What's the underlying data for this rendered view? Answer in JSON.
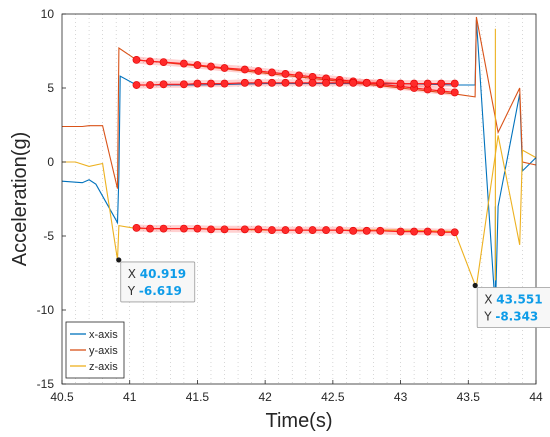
{
  "chart_data": {
    "type": "line",
    "xlabel": "Time(s)",
    "ylabel": "Acceleration(g)",
    "xlim": [
      40.5,
      44
    ],
    "ylim": [
      -15,
      10
    ],
    "x_ticks": [
      "40.5",
      "41",
      "41.5",
      "42",
      "42.5",
      "43",
      "43.5",
      "44"
    ],
    "y_ticks": [
      "-15",
      "-10",
      "-5",
      "0",
      "5",
      "10"
    ],
    "grid": "dotted vertical",
    "legend_position": "bottom-left",
    "series": [
      {
        "name": "x-axis",
        "color": "#0072bd",
        "points": [
          [
            40.5,
            -1.3
          ],
          [
            40.65,
            -1.4
          ],
          [
            40.7,
            -1.2
          ],
          [
            40.75,
            -1.5
          ],
          [
            40.91,
            -4.1
          ],
          [
            40.92,
            -0.9
          ],
          [
            40.93,
            5.8
          ],
          [
            41.05,
            5.2
          ],
          [
            41.5,
            5.2
          ],
          [
            42,
            5.3
          ],
          [
            42.5,
            5.3
          ],
          [
            43,
            5.3
          ],
          [
            43.4,
            5.2
          ],
          [
            43.55,
            5.2
          ],
          [
            43.56,
            9.6
          ],
          [
            43.7,
            -10
          ],
          [
            43.72,
            -3
          ],
          [
            43.88,
            4.6
          ],
          [
            43.9,
            -0.6
          ],
          [
            44,
            0.3
          ]
        ]
      },
      {
        "name": "y-axis",
        "color": "#d95319",
        "points": [
          [
            40.5,
            2.4
          ],
          [
            40.65,
            2.4
          ],
          [
            40.7,
            2.45
          ],
          [
            40.8,
            2.45
          ],
          [
            40.91,
            -1.8
          ],
          [
            40.92,
            7.7
          ],
          [
            41.05,
            6.9
          ],
          [
            41.5,
            6.5
          ],
          [
            42,
            6.0
          ],
          [
            42.5,
            5.5
          ],
          [
            43,
            5.0
          ],
          [
            43.4,
            4.6
          ],
          [
            43.55,
            4.4
          ],
          [
            43.56,
            9.8
          ],
          [
            43.72,
            2.0
          ],
          [
            43.88,
            5.0
          ],
          [
            43.9,
            0
          ],
          [
            44,
            -0.2
          ]
        ]
      },
      {
        "name": "z-axis",
        "color": "#edb120",
        "points": [
          [
            40.5,
            0
          ],
          [
            40.6,
            0
          ],
          [
            40.7,
            -0.3
          ],
          [
            40.8,
            -0.1
          ],
          [
            40.91,
            -6.6
          ],
          [
            40.92,
            -4.3
          ],
          [
            41.05,
            -4.5
          ],
          [
            41.5,
            -4.5
          ],
          [
            42,
            -4.6
          ],
          [
            42.5,
            -4.6
          ],
          [
            43,
            -4.6
          ],
          [
            43.4,
            -4.7
          ],
          [
            43.55,
            -8.3
          ],
          [
            43.56,
            -8.4
          ],
          [
            43.72,
            1.8
          ],
          [
            43.88,
            -5.6
          ],
          [
            43.9,
            0.8
          ],
          [
            44,
            0.3
          ]
        ]
      }
    ],
    "vertical_lines": [
      {
        "x": 43.7,
        "y_from": -10,
        "y_to": -3,
        "color": "#0072bd"
      },
      {
        "x": 43.7,
        "y_from": -8,
        "y_to": 9,
        "color": "#edb120"
      }
    ],
    "brushed_points": [
      {
        "series": "y-axis",
        "points": [
          [
            41.05,
            6.9
          ],
          [
            41.15,
            6.8
          ],
          [
            41.25,
            6.75
          ],
          [
            41.4,
            6.65
          ],
          [
            41.5,
            6.55
          ],
          [
            41.6,
            6.45
          ],
          [
            41.7,
            6.35
          ],
          [
            41.85,
            6.25
          ],
          [
            41.95,
            6.15
          ],
          [
            42.05,
            6.05
          ],
          [
            42.15,
            5.95
          ],
          [
            42.25,
            5.85
          ],
          [
            42.35,
            5.75
          ],
          [
            42.45,
            5.65
          ],
          [
            42.55,
            5.55
          ],
          [
            42.65,
            5.45
          ],
          [
            42.75,
            5.35
          ],
          [
            42.85,
            5.25
          ],
          [
            43,
            5.1
          ],
          [
            43.1,
            5.0
          ],
          [
            43.2,
            4.9
          ],
          [
            43.3,
            4.8
          ],
          [
            43.4,
            4.7
          ]
        ]
      },
      {
        "series": "x-axis",
        "points": [
          [
            41.05,
            5.2
          ],
          [
            41.15,
            5.2
          ],
          [
            41.25,
            5.25
          ],
          [
            41.4,
            5.25
          ],
          [
            41.5,
            5.3
          ],
          [
            41.6,
            5.3
          ],
          [
            41.7,
            5.3
          ],
          [
            41.85,
            5.35
          ],
          [
            41.95,
            5.35
          ],
          [
            42.05,
            5.35
          ],
          [
            42.15,
            5.35
          ],
          [
            42.25,
            5.35
          ],
          [
            42.35,
            5.35
          ],
          [
            42.45,
            5.35
          ],
          [
            42.55,
            5.35
          ],
          [
            42.65,
            5.35
          ],
          [
            42.75,
            5.35
          ],
          [
            42.85,
            5.35
          ],
          [
            43,
            5.3
          ],
          [
            43.1,
            5.3
          ],
          [
            43.2,
            5.3
          ],
          [
            43.3,
            5.3
          ],
          [
            43.4,
            5.3
          ]
        ]
      },
      {
        "series": "z-axis",
        "points": [
          [
            41.05,
            -4.45
          ],
          [
            41.15,
            -4.5
          ],
          [
            41.25,
            -4.5
          ],
          [
            41.4,
            -4.5
          ],
          [
            41.5,
            -4.5
          ],
          [
            41.6,
            -4.55
          ],
          [
            41.7,
            -4.55
          ],
          [
            41.85,
            -4.55
          ],
          [
            41.95,
            -4.55
          ],
          [
            42.05,
            -4.6
          ],
          [
            42.15,
            -4.6
          ],
          [
            42.25,
            -4.6
          ],
          [
            42.35,
            -4.6
          ],
          [
            42.45,
            -4.6
          ],
          [
            42.55,
            -4.6
          ],
          [
            42.65,
            -4.65
          ],
          [
            42.75,
            -4.65
          ],
          [
            42.85,
            -4.65
          ],
          [
            43,
            -4.7
          ],
          [
            43.1,
            -4.7
          ],
          [
            43.2,
            -4.7
          ],
          [
            43.3,
            -4.75
          ],
          [
            43.4,
            -4.75
          ]
        ]
      }
    ],
    "datatips": [
      {
        "x": 40.919,
        "y": -6.619,
        "x_label": "X",
        "y_label": "Y",
        "x_text": "40.919",
        "y_text": "-6.619"
      },
      {
        "x": 43.551,
        "y": -8.343,
        "x_label": "X",
        "y_label": "Y",
        "x_text": "43.551",
        "y_text": "-8.343"
      }
    ]
  }
}
